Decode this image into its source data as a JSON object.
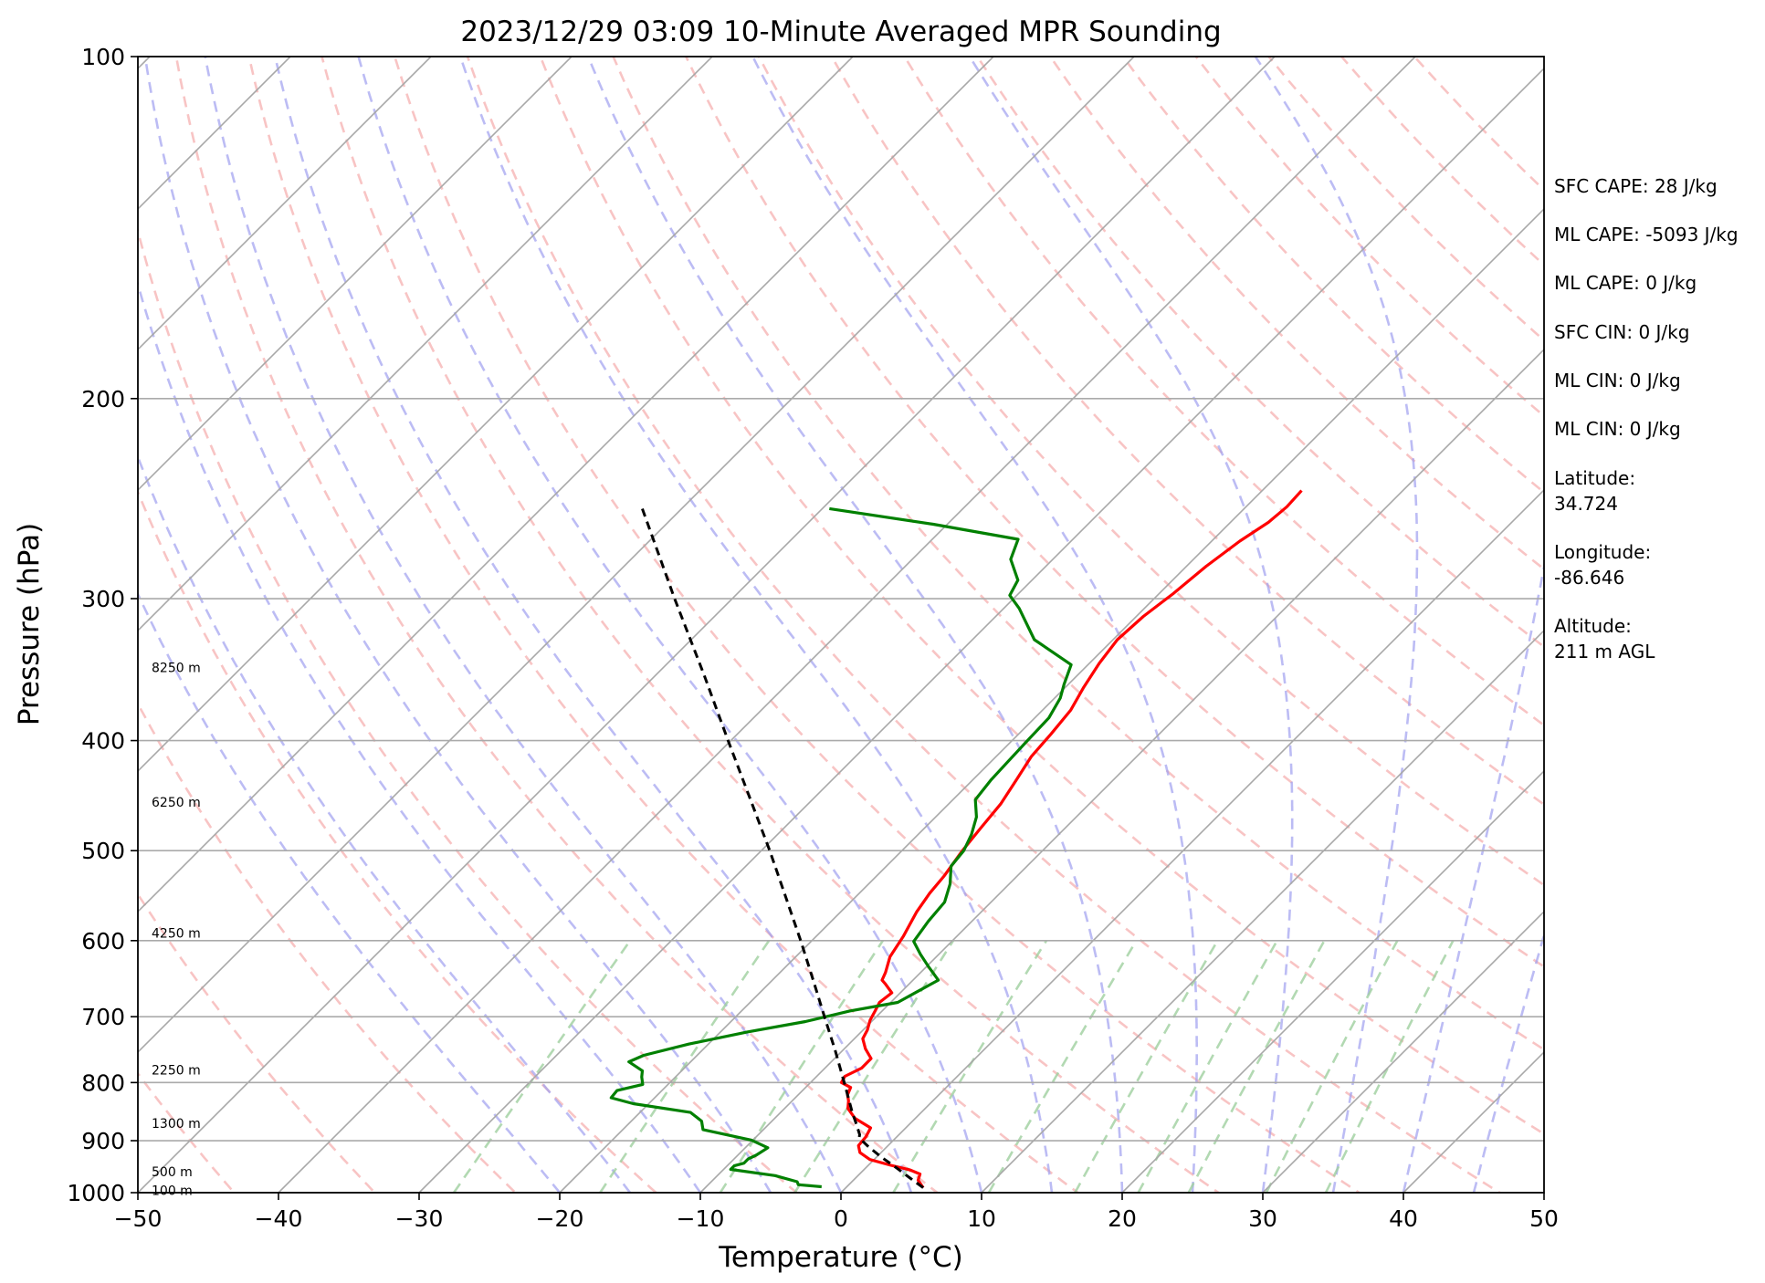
{
  "chart_data": {
    "type": "line",
    "subtype": "skew-t log-p sounding",
    "title": "2023/12/29 03:09 10-Minute Averaged MPR Sounding",
    "xlabel": "Temperature (°C)",
    "ylabel": "Pressure (hPa)",
    "xlim": [
      -50,
      50
    ],
    "ylim": [
      1000,
      100
    ],
    "y_scale": "log",
    "x_ticks": [
      -50,
      -40,
      -30,
      -20,
      -10,
      0,
      10,
      20,
      30,
      40,
      50
    ],
    "y_ticks": [
      100,
      200,
      300,
      400,
      500,
      600,
      700,
      800,
      900,
      1000
    ],
    "x_tick_labels": [
      "−50",
      "−40",
      "−30",
      "−20",
      "−10",
      "0",
      "10",
      "20",
      "30",
      "40",
      "50"
    ],
    "y_tick_labels": [
      "100",
      "200",
      "300",
      "400",
      "500",
      "600",
      "700",
      "800",
      "900",
      "1000"
    ],
    "grid": "horizontal at labeled pressures",
    "colors": {
      "temperature": "#ff0000",
      "dewpoint": "#008000",
      "parcel": "#000000",
      "isotherms": "#a8a8a8",
      "dry_adiabats": "#f5a5a5",
      "moist_adiabats": "#9f9fef",
      "mixing_ratio": "#9fcf9f",
      "grid": "#aaaaaa"
    },
    "height_labels": [
      {
        "text": "8250 m",
        "p": 345
      },
      {
        "text": "6250 m",
        "p": 453
      },
      {
        "text": "4250 m",
        "p": 591
      },
      {
        "text": "2250 m",
        "p": 780
      },
      {
        "text": "1300 m",
        "p": 869
      },
      {
        "text": "500 m",
        "p": 958
      },
      {
        "text": "100 m",
        "p": 995
      }
    ],
    "series": [
      {
        "key": "temperature",
        "points": [
          [
            990,
            5.5
          ],
          [
            975,
            4.6
          ],
          [
            963,
            4.3
          ],
          [
            955,
            3.3
          ],
          [
            946,
            1.6
          ],
          [
            935,
            -0.3
          ],
          [
            922,
            -1.5
          ],
          [
            909,
            -2.1
          ],
          [
            893,
            -2.2
          ],
          [
            877,
            -2.5
          ],
          [
            860,
            -4.3
          ],
          [
            843,
            -5.5
          ],
          [
            830,
            -6.0
          ],
          [
            820,
            -6.5
          ],
          [
            808,
            -6.8
          ],
          [
            800,
            -7.8
          ],
          [
            790,
            -8.0
          ],
          [
            777,
            -7.4
          ],
          [
            762,
            -7.4
          ],
          [
            747,
            -8.5
          ],
          [
            732,
            -9.4
          ],
          [
            719,
            -9.7
          ],
          [
            705,
            -10.2
          ],
          [
            692,
            -10.5
          ],
          [
            680,
            -10.8
          ],
          [
            667,
            -10.6
          ],
          [
            655,
            -11.7
          ],
          [
            650,
            -12.2
          ],
          [
            640,
            -12.5
          ],
          [
            620,
            -13.3
          ],
          [
            595,
            -13.8
          ],
          [
            566,
            -14.6
          ],
          [
            545,
            -15.0
          ],
          [
            526,
            -15.2
          ],
          [
            500,
            -15.7
          ],
          [
            478,
            -16.0
          ],
          [
            455,
            -16.3
          ],
          [
            433,
            -16.9
          ],
          [
            413,
            -17.5
          ],
          [
            395,
            -17.7
          ],
          [
            376,
            -18.0
          ],
          [
            359,
            -18.7
          ],
          [
            342,
            -19.3
          ],
          [
            326,
            -19.7
          ],
          [
            311,
            -19.5
          ],
          [
            297,
            -19.0
          ],
          [
            281,
            -18.6
          ],
          [
            267,
            -18.0
          ],
          [
            257,
            -17.3
          ],
          [
            249,
            -17.1
          ],
          [
            241,
            -17.2
          ]
        ]
      },
      {
        "key": "dewpoint",
        "points": [
          [
            988,
            -1.8
          ],
          [
            984,
            -3.6
          ],
          [
            978,
            -3.9
          ],
          [
            966,
            -5.9
          ],
          [
            954,
            -9.5
          ],
          [
            947,
            -9.5
          ],
          [
            942,
            -9.0
          ],
          [
            934,
            -9.0
          ],
          [
            927,
            -8.7
          ],
          [
            913,
            -8.4
          ],
          [
            899,
            -10.1
          ],
          [
            880,
            -14.3
          ],
          [
            865,
            -15.0
          ],
          [
            850,
            -16.4
          ],
          [
            835,
            -21.1
          ],
          [
            825,
            -23.1
          ],
          [
            813,
            -23.2
          ],
          [
            803,
            -21.8
          ],
          [
            791,
            -22.4
          ],
          [
            781,
            -22.8
          ],
          [
            767,
            -24.4
          ],
          [
            757,
            -23.8
          ],
          [
            740,
            -21.4
          ],
          [
            722,
            -18.1
          ],
          [
            707,
            -14.7
          ],
          [
            692,
            -12.3
          ],
          [
            680,
            -9.5
          ],
          [
            666,
            -8.9
          ],
          [
            650,
            -8.2
          ],
          [
            632,
            -9.9
          ],
          [
            617,
            -11.3
          ],
          [
            601,
            -12.7
          ],
          [
            577,
            -13.1
          ],
          [
            555,
            -13.3
          ],
          [
            535,
            -14.2
          ],
          [
            516,
            -15.4
          ],
          [
            500,
            -15.6
          ],
          [
            484,
            -16.2
          ],
          [
            467,
            -17.1
          ],
          [
            451,
            -18.4
          ],
          [
            433,
            -18.7
          ],
          [
            417,
            -18.8
          ],
          [
            401,
            -18.9
          ],
          [
            382,
            -19.0
          ],
          [
            367,
            -19.6
          ],
          [
            357,
            -20.3
          ],
          [
            343,
            -21.2
          ],
          [
            326,
            -25.6
          ],
          [
            306,
            -28.9
          ],
          [
            298,
            -30.5
          ],
          [
            289,
            -31.0
          ],
          [
            277,
            -33.0
          ],
          [
            266,
            -33.9
          ],
          [
            258,
            -41.0
          ],
          [
            250,
            -49.5
          ]
        ]
      },
      {
        "key": "parcel",
        "points": [
          [
            990,
            5.5
          ],
          [
            970,
            3.8
          ],
          [
            950,
            2.1
          ],
          [
            930,
            0.3
          ],
          [
            910,
            -1.4
          ],
          [
            895,
            -2.6
          ],
          [
            889,
            -2.8
          ],
          [
            870,
            -3.8
          ],
          [
            850,
            -4.9
          ],
          [
            800,
            -7.6
          ],
          [
            750,
            -10.5
          ],
          [
            700,
            -13.7
          ],
          [
            650,
            -17.1
          ],
          [
            600,
            -20.8
          ],
          [
            550,
            -24.9
          ],
          [
            500,
            -29.4
          ],
          [
            450,
            -34.5
          ],
          [
            400,
            -40.2
          ],
          [
            350,
            -46.6
          ],
          [
            300,
            -54.1
          ],
          [
            250,
            -62.8
          ]
        ]
      }
    ]
  },
  "sidebar": {
    "sfc_cape": "SFC CAPE: 28 J/kg",
    "ml_cape_1": "ML CAPE: -5093 J/kg",
    "ml_cape_2": "ML CAPE: 0 J/kg",
    "sfc_cin": "SFC CIN: 0 J/kg",
    "ml_cin_1": "ML CIN: 0 J/kg",
    "ml_cin_2": "ML CIN: 0 J/kg",
    "latitude_label": "Latitude:",
    "latitude_value": "34.724",
    "longitude_label": "Longitude:",
    "longitude_value": "-86.646",
    "altitude_label": "Altitude:",
    "altitude_value": "211 m AGL"
  }
}
